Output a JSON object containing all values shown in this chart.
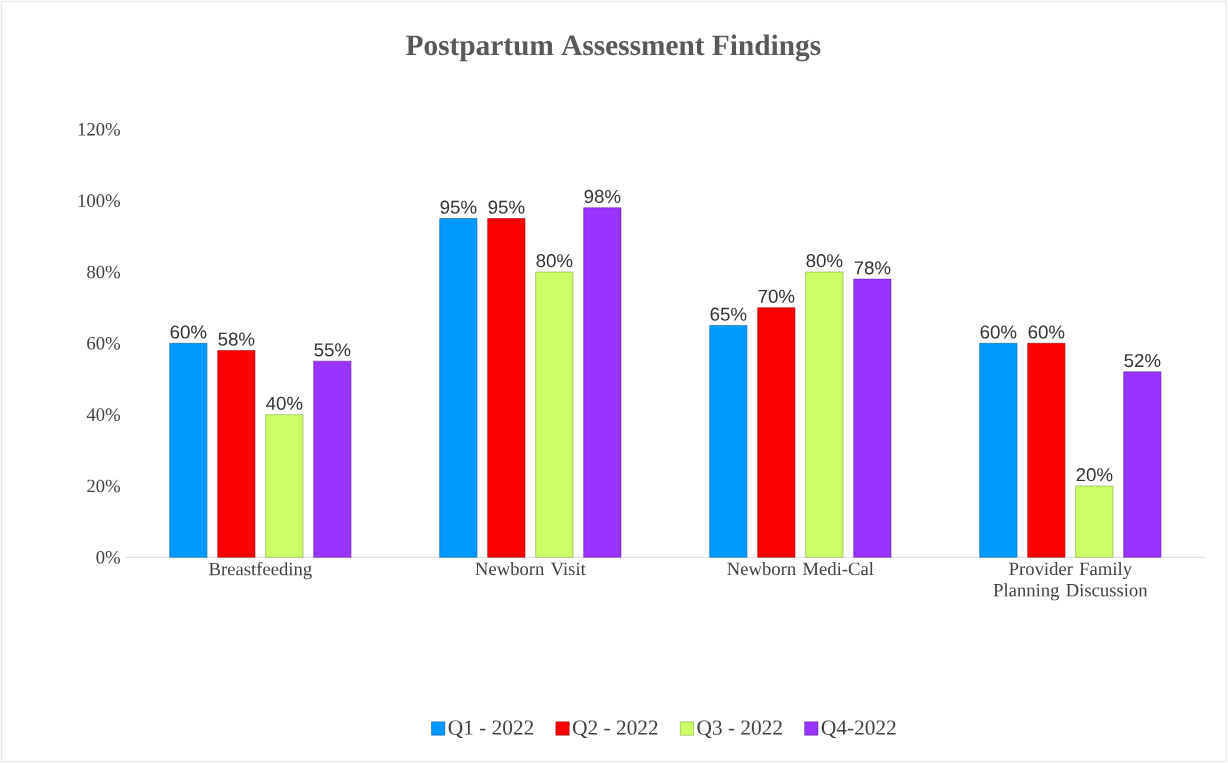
{
  "chart_data": {
    "type": "bar",
    "title": "Postpartum Assessment Findings",
    "categories": [
      "Breastfeeding",
      "Newborn Visit",
      "Newborn Medi-Cal",
      "Provider Family Planning Discussion"
    ],
    "series": [
      {
        "name": "Q1 - 2022",
        "color": "#0099ff",
        "values": [
          60,
          95,
          65,
          60
        ],
        "value_labels": [
          "60%",
          "95%",
          "65%",
          "60%"
        ]
      },
      {
        "name": "Q2 - 2022",
        "color": "#ff0000",
        "values": [
          58,
          95,
          70,
          60
        ],
        "value_labels": [
          "58%",
          "95%",
          "70%",
          "60%"
        ]
      },
      {
        "name": "Q3 - 2022",
        "color": "#ccff66",
        "values": [
          40,
          80,
          80,
          20
        ],
        "value_labels": [
          "40%",
          "80%",
          "80%",
          "20%"
        ]
      },
      {
        "name": "Q4-2022",
        "color": "#9933ff",
        "values": [
          55,
          98,
          78,
          52
        ],
        "value_labels": [
          "55%",
          "98%",
          "78%",
          "52%"
        ]
      }
    ],
    "ylim": [
      0,
      120
    ],
    "yticks": [
      {
        "value": 0,
        "label": "0%"
      },
      {
        "value": 20,
        "label": "20%"
      },
      {
        "value": 40,
        "label": "40%"
      },
      {
        "value": 60,
        "label": "60%"
      },
      {
        "value": 80,
        "label": "80%"
      },
      {
        "value": 100,
        "label": "100%"
      },
      {
        "value": 120,
        "label": "120%"
      }
    ],
    "legend": "bottom"
  }
}
